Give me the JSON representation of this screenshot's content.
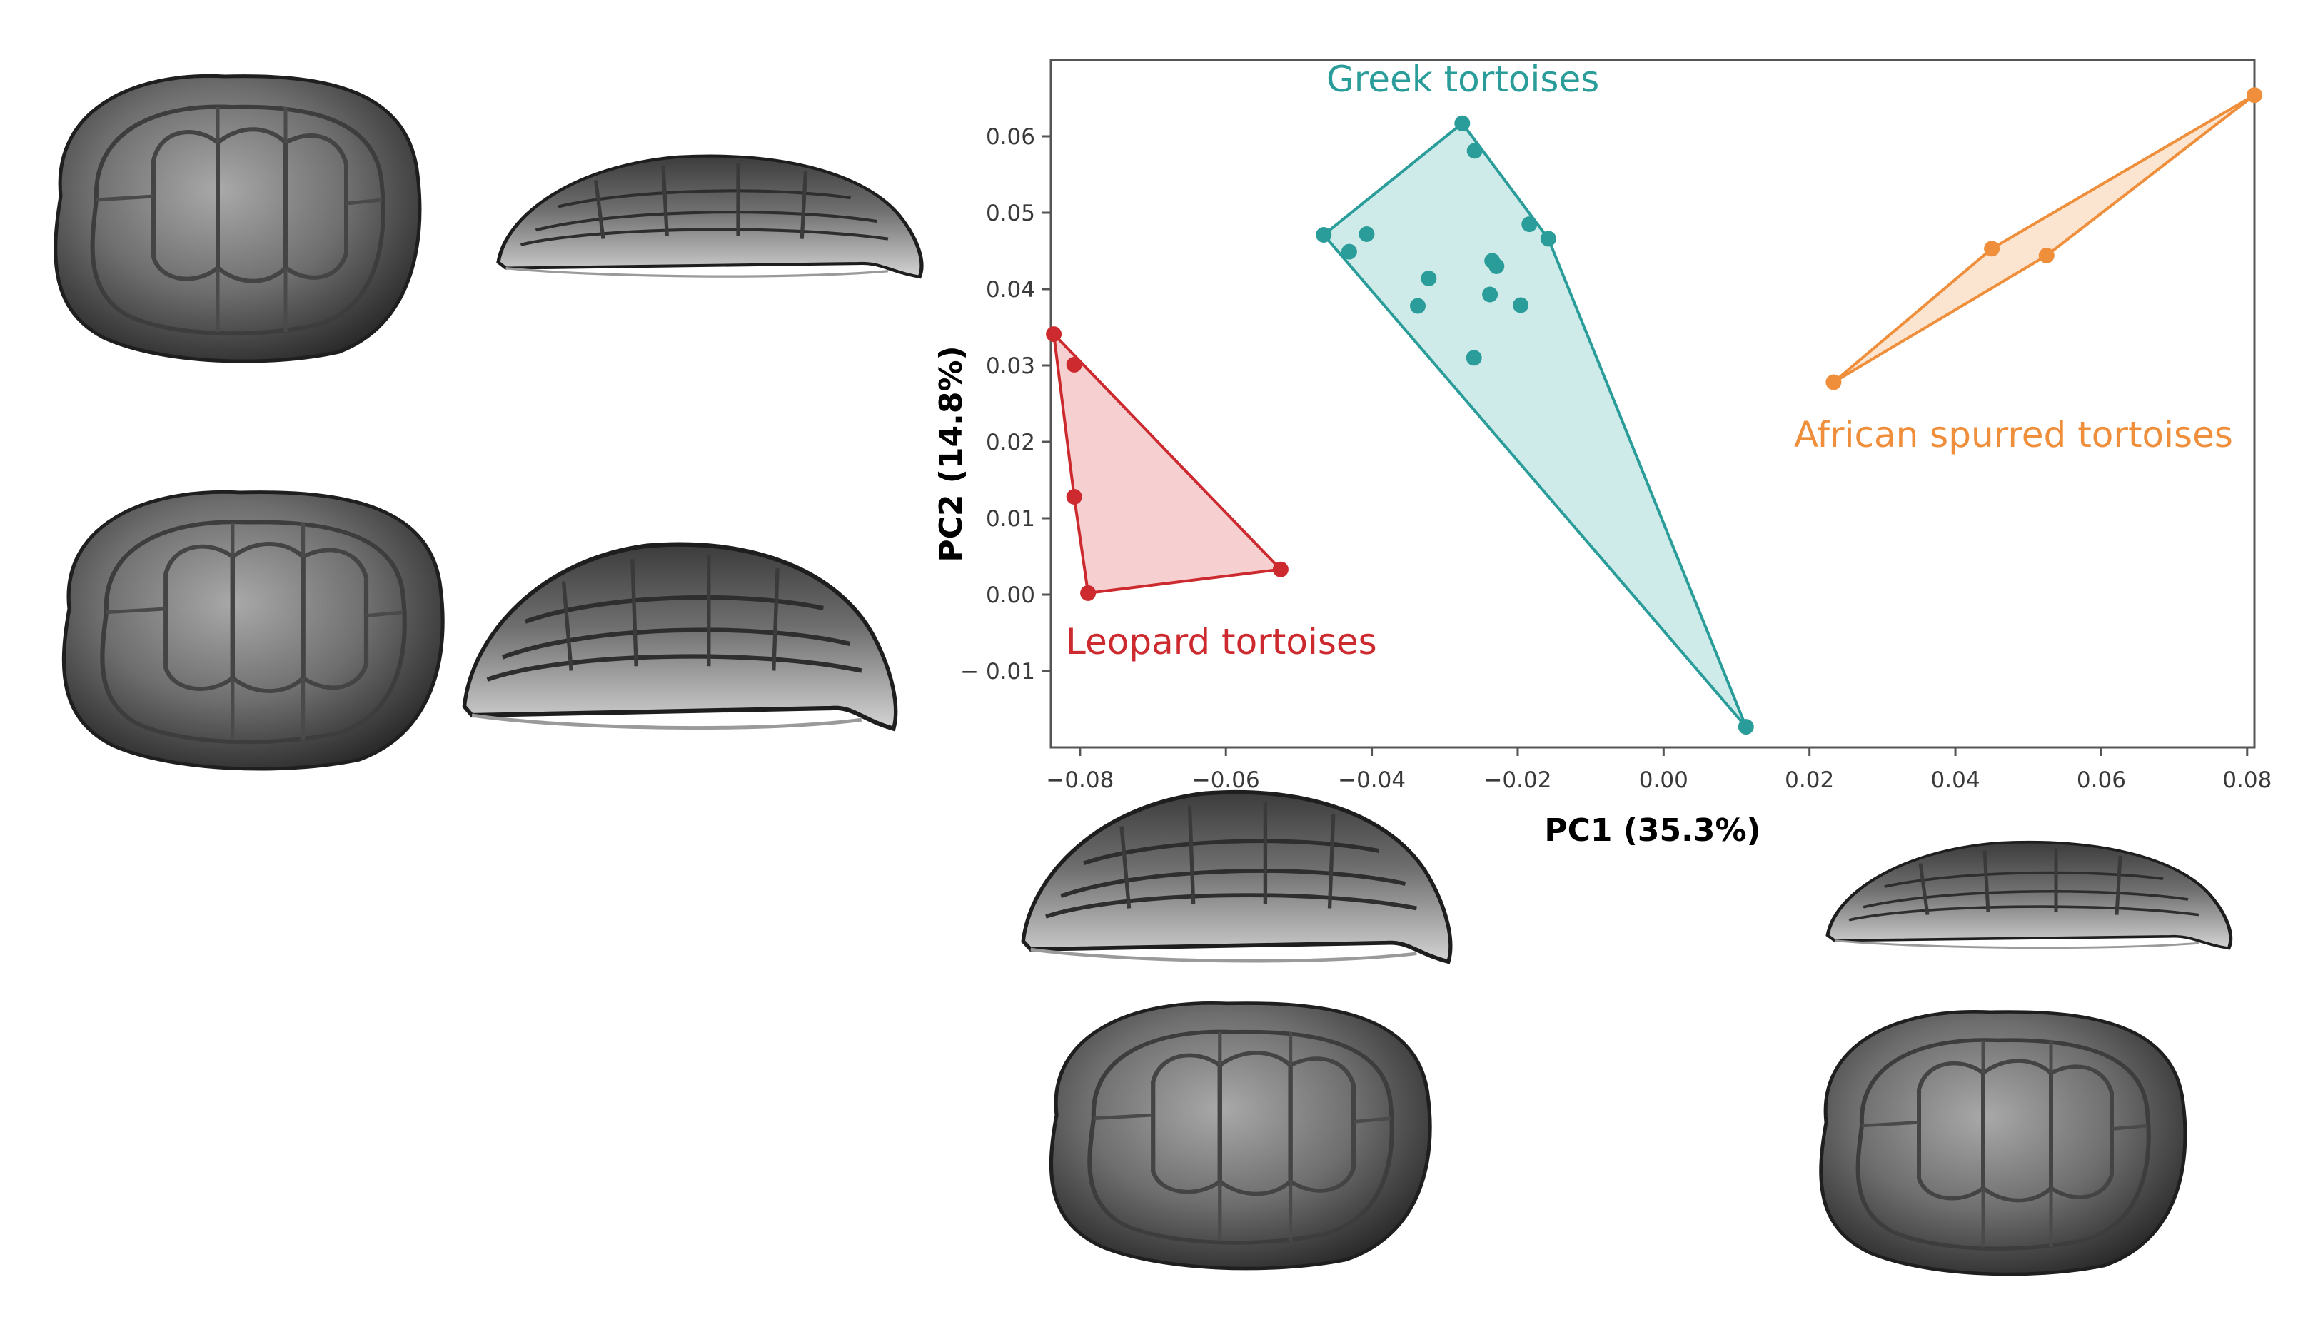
{
  "chart_data": {
    "type": "scatter",
    "title": "",
    "xlabel": "PC1 (35.3%)",
    "ylabel": "PC2 (14.8%)",
    "xlim": [
      -0.084,
      0.081
    ],
    "ylim": [
      -0.02,
      0.07
    ],
    "xticks": [
      -0.08,
      -0.06,
      -0.04,
      -0.02,
      0.0,
      0.02,
      0.04,
      0.06,
      0.08
    ],
    "xtick_labels": [
      "−0.08",
      "−0.06",
      "−0.04",
      "−0.02",
      "0.00",
      "0.02",
      "0.04",
      "0.06",
      "0.08"
    ],
    "yticks": [
      -0.01,
      0.0,
      0.01,
      0.02,
      0.03,
      0.04,
      0.05,
      0.06
    ],
    "ytick_labels": [
      "− 0.01",
      "0.00",
      "0.01",
      "0.02",
      "0.03",
      "0.04",
      "0.05",
      "0.06"
    ],
    "grid": false,
    "hulls": true,
    "series": [
      {
        "name": "Greek tortoises",
        "label": "Greek tortoises",
        "color": "#2a9d9a",
        "fill": "#c6e6e5",
        "points": [
          [
            -0.0466,
            0.0471
          ],
          [
            -0.0276,
            0.0617
          ],
          [
            -0.0259,
            0.0581
          ],
          [
            -0.0184,
            0.0485
          ],
          [
            -0.0158,
            0.0466
          ],
          [
            -0.0407,
            0.0472
          ],
          [
            -0.0431,
            0.0449
          ],
          [
            -0.0322,
            0.0414
          ],
          [
            -0.0337,
            0.0378
          ],
          [
            -0.0235,
            0.0437
          ],
          [
            -0.0229,
            0.043
          ],
          [
            -0.0238,
            0.0393
          ],
          [
            -0.0196,
            0.0379
          ],
          [
            -0.026,
            0.031
          ],
          [
            0.0113,
            -0.0173
          ]
        ],
        "hull": [
          [
            -0.0466,
            0.0471
          ],
          [
            -0.0276,
            0.0617
          ],
          [
            -0.0158,
            0.0466
          ],
          [
            0.0113,
            -0.0173
          ]
        ]
      },
      {
        "name": "Leopard tortoises",
        "label": "Leopard tortoises",
        "color": "#cc2a2e",
        "fill": "#f4c8c9",
        "points": [
          [
            -0.0836,
            0.0341
          ],
          [
            -0.0808,
            0.0301
          ],
          [
            -0.0808,
            0.0128
          ],
          [
            -0.0789,
            0.0002
          ],
          [
            -0.0525,
            0.0033
          ]
        ],
        "hull": [
          [
            -0.0836,
            0.0341
          ],
          [
            -0.0525,
            0.0033
          ],
          [
            -0.0789,
            0.0002
          ],
          [
            -0.0808,
            0.0128
          ]
        ]
      },
      {
        "name": "African spurred tortoises",
        "label": "African spurred tortoises",
        "color": "#ef8f3c",
        "fill": "#fbe0c8",
        "points": [
          [
            0.0233,
            0.0278
          ],
          [
            0.045,
            0.0453
          ],
          [
            0.0525,
            0.0444
          ],
          [
            0.081,
            0.0654
          ]
        ],
        "hull": [
          [
            0.0233,
            0.0278
          ],
          [
            0.045,
            0.0453
          ],
          [
            0.081,
            0.0654
          ],
          [
            0.0525,
            0.0444
          ]
        ]
      }
    ]
  },
  "shell_images": [
    {
      "name": "shell-top-left-dorsal",
      "view": "dorsal"
    },
    {
      "name": "shell-top-left-lateral",
      "view": "lateral"
    },
    {
      "name": "shell-mid-left-dorsal",
      "view": "dorsal"
    },
    {
      "name": "shell-mid-left-lateral",
      "view": "lateral"
    },
    {
      "name": "shell-bottom-center-lateral",
      "view": "lateral"
    },
    {
      "name": "shell-bottom-center-dorsal",
      "view": "dorsal"
    },
    {
      "name": "shell-bottom-right-lateral",
      "view": "lateral"
    },
    {
      "name": "shell-bottom-right-dorsal",
      "view": "dorsal"
    }
  ]
}
